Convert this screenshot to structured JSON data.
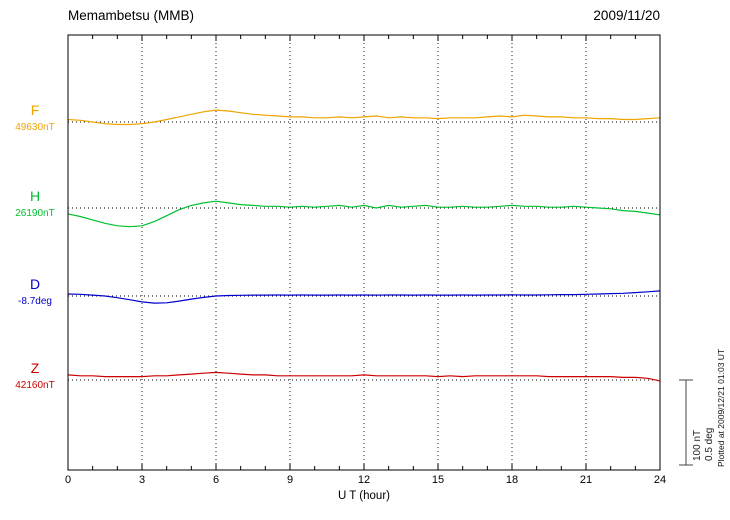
{
  "header": {
    "station_title": "Memambetsu (MMB)",
    "date": "2009/11/20"
  },
  "chart_data": {
    "type": "line",
    "title": "Memambetsu (MMB)",
    "date": "2009/11/20",
    "xlabel": "U T (hour)",
    "x_range": [
      0,
      24
    ],
    "x_ticks": [
      0,
      3,
      6,
      9,
      12,
      15,
      18,
      21,
      24
    ],
    "sample_step_hours": 0.5,
    "grid": "dotted vertical lines every 3 hours; dotted horizontal baseline per component",
    "scale_bar": {
      "nT": "100 nT",
      "deg": "0.5 deg"
    },
    "footnote": "Plotted at 2009/12/21 01:03 UT",
    "series": [
      {
        "name": "F",
        "base_label": "49630nT",
        "base_value": 49630,
        "unit": "nT",
        "color": "#efa400",
        "offsets": [
          3,
          2,
          0,
          -2,
          -3,
          -3,
          -2,
          0,
          3,
          6,
          9,
          12,
          14,
          13,
          11,
          9,
          8,
          7,
          6,
          6,
          5,
          5,
          6,
          5,
          6,
          7,
          5,
          6,
          5,
          5,
          4,
          5,
          5,
          5,
          6,
          7,
          6,
          8,
          7,
          6,
          6,
          5,
          5,
          4,
          4,
          3,
          3,
          4,
          5
        ]
      },
      {
        "name": "H",
        "base_label": "26190nT",
        "base_value": 26190,
        "unit": "nT",
        "color": "#00c030",
        "offsets": [
          -7,
          -10,
          -14,
          -18,
          -21,
          -22,
          -21,
          -16,
          -9,
          -2,
          3,
          6,
          8,
          6,
          4,
          3,
          2,
          2,
          1,
          2,
          1,
          2,
          3,
          1,
          3,
          0,
          3,
          1,
          2,
          3,
          1,
          1,
          2,
          1,
          1,
          2,
          3,
          2,
          2,
          1,
          1,
          2,
          1,
          0,
          -1,
          -3,
          -4,
          -6,
          -8
        ]
      },
      {
        "name": "D",
        "base_label": "-8.7deg",
        "base_value": -8.7,
        "unit": "deg",
        "color": "#0000cc",
        "offsets": [
          0.012,
          0.01,
          0.005,
          0.0,
          -0.01,
          -0.022,
          -0.035,
          -0.042,
          -0.04,
          -0.03,
          -0.018,
          -0.008,
          0.0,
          0.003,
          0.004,
          0.005,
          0.005,
          0.006,
          0.005,
          0.006,
          0.005,
          0.005,
          0.006,
          0.005,
          0.006,
          0.005,
          0.006,
          0.006,
          0.005,
          0.006,
          0.005,
          0.005,
          0.006,
          0.005,
          0.006,
          0.006,
          0.007,
          0.006,
          0.006,
          0.007,
          0.008,
          0.008,
          0.01,
          0.012,
          0.014,
          0.016,
          0.02,
          0.025,
          0.03
        ]
      },
      {
        "name": "Z",
        "base_label": "42160nT",
        "base_value": 42160,
        "unit": "nT",
        "color": "#cc0000",
        "offsets": [
          6,
          5,
          5,
          4,
          4,
          4,
          4,
          5,
          5,
          6,
          7,
          8,
          9,
          8,
          7,
          6,
          6,
          5,
          5,
          5,
          5,
          5,
          5,
          5,
          6,
          5,
          5,
          5,
          5,
          5,
          4,
          5,
          4,
          5,
          5,
          5,
          5,
          5,
          5,
          4,
          4,
          4,
          4,
          4,
          4,
          3,
          3,
          2,
          -1
        ]
      }
    ]
  }
}
